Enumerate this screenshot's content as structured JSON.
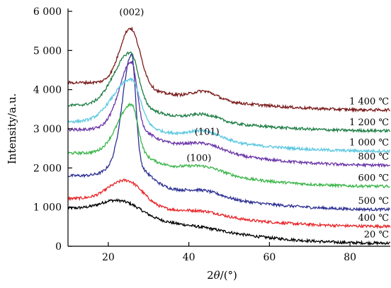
{
  "chart_data": {
    "type": "line",
    "title": "",
    "xlabel_prefix": "2",
    "xlabel_var": "θ",
    "xlabel_unit": "/(°)",
    "ylabel": "Intensity/a.u.",
    "xlim": [
      10,
      90
    ],
    "ylim": [
      0,
      6000
    ],
    "x_ticks": [
      20,
      40,
      60,
      80
    ],
    "x_tick_labels": [
      "20",
      "40",
      "60",
      "80"
    ],
    "y_ticks": [
      0,
      1000,
      2000,
      3000,
      4000,
      5000,
      6000
    ],
    "y_tick_labels": [
      "0",
      "1 000",
      "2 000",
      "3 000",
      "4 000",
      "5 000",
      "6 000"
    ],
    "grid": false,
    "legend": "inline labels at right end of each curve",
    "peak_annotations": [
      {
        "text": "(002)",
        "x": 25.8,
        "y": 5900
      },
      {
        "text": "(101)",
        "x": 44.5,
        "y": 2850
      },
      {
        "text": "(100)",
        "x": 42.5,
        "y": 2180
      }
    ],
    "series": [
      {
        "name": "20 ℃",
        "color": "#000000",
        "baseline": 970,
        "peak_x": 24.0,
        "peak_h": 280,
        "peak_w": 3.8,
        "p2_h": 40,
        "p2_w": 5.0,
        "tail": 80,
        "sharp": false,
        "x": [
          10,
          15,
          20,
          24,
          28,
          32,
          40,
          44,
          50,
          60,
          70,
          80,
          90
        ],
        "y": [
          970,
          1030,
          1150,
          1250,
          800,
          470,
          320,
          330,
          240,
          140,
          100,
          90,
          80
        ]
      },
      {
        "name": "400 ℃",
        "color": "#e8262a",
        "baseline": 1220,
        "peak_x": 24.8,
        "peak_h": 560,
        "peak_w": 3.4,
        "p2_h": 100,
        "p2_w": 4.5,
        "tail": 510,
        "sharp": false,
        "x": [
          10,
          15,
          20,
          25,
          28,
          32,
          40,
          44,
          50,
          60,
          70,
          80,
          90
        ],
        "y": [
          1220,
          1280,
          1500,
          1780,
          1150,
          850,
          800,
          820,
          720,
          600,
          560,
          530,
          510
        ]
      },
      {
        "name": "500 ℃",
        "color": "#2e3192",
        "baseline": 1800,
        "peak_x": 25.8,
        "peak_h": 2750,
        "peak_w": 1.0,
        "p2_h": 140,
        "p2_w": 4.2,
        "tail": 940,
        "sharp": true,
        "x": [
          10,
          15,
          20,
          25.8,
          28,
          32,
          40,
          44,
          50,
          60,
          70,
          80,
          90
        ],
        "y": [
          1800,
          1850,
          1950,
          4600,
          1800,
          1400,
          1270,
          1300,
          1140,
          1040,
          990,
          960,
          940
        ]
      },
      {
        "name": "600 ℃",
        "color": "#3ab54a",
        "baseline": 2380,
        "peak_x": 25.8,
        "peak_h": 1170,
        "peak_w": 1.5,
        "p2_h": 170,
        "p2_w": 4.5,
        "tail": 1530,
        "sharp": true,
        "x": [
          10,
          15,
          20,
          25.8,
          28,
          32,
          40,
          44,
          50,
          60,
          70,
          80,
          90
        ],
        "y": [
          2380,
          2400,
          2500,
          3550,
          2400,
          2050,
          1900,
          1920,
          1800,
          1650,
          1590,
          1560,
          1530
        ]
      },
      {
        "name": "800 ℃",
        "color": "#6a35a8",
        "baseline": 2980,
        "peak_x": 25.8,
        "peak_h": 1600,
        "peak_w": 1.3,
        "p2_h": 190,
        "p2_w": 4.5,
        "tail": 2070,
        "sharp": true,
        "x": [
          10,
          15,
          20,
          25.8,
          28,
          32,
          40,
          44,
          50,
          60,
          70,
          80,
          90
        ],
        "y": [
          2980,
          3000,
          3100,
          4580,
          3000,
          2620,
          2450,
          2480,
          2350,
          2200,
          2130,
          2100,
          2070
        ]
      },
      {
        "name": "1 000 ℃",
        "color": "#5bc8e0",
        "baseline": 3180,
        "peak_x": 25.8,
        "peak_h": 1020,
        "peak_w": 2.0,
        "p2_h": 210,
        "p2_w": 4.2,
        "tail": 2430,
        "sharp": true,
        "x": [
          10,
          15,
          20,
          25.8,
          28,
          32,
          40,
          44,
          50,
          60,
          70,
          80,
          90
        ],
        "y": [
          3180,
          3200,
          3300,
          4220,
          3150,
          2780,
          2620,
          2700,
          2600,
          2520,
          2480,
          2450,
          2430
        ]
      },
      {
        "name": "1 200 ℃",
        "color": "#1e7e45",
        "baseline": 3600,
        "peak_x": 25.6,
        "peak_h": 1230,
        "peak_w": 1.8,
        "p2_h": 160,
        "p2_w": 3.5,
        "tail": 2950,
        "sharp": true,
        "x": [
          10,
          15,
          20,
          25.6,
          28,
          32,
          40,
          44,
          50,
          60,
          70,
          80,
          90
        ],
        "y": [
          3600,
          3580,
          3700,
          4820,
          3700,
          3300,
          3130,
          3250,
          3080,
          3020,
          2990,
          2970,
          2950
        ]
      },
      {
        "name": "1 400 ℃",
        "color": "#7a1a1a",
        "baseline": 4180,
        "peak_x": 25.5,
        "peak_h": 1500,
        "peak_w": 2.2,
        "p2_h": 200,
        "p2_w": 3.0,
        "tail": 3480,
        "sharp": false,
        "x": [
          10,
          15,
          20,
          25.5,
          28,
          32,
          40,
          44,
          50,
          60,
          70,
          80,
          90
        ],
        "y": [
          4180,
          4130,
          4300,
          5650,
          4500,
          3900,
          3650,
          3800,
          3580,
          3530,
          3510,
          3500,
          3480
        ]
      }
    ]
  }
}
